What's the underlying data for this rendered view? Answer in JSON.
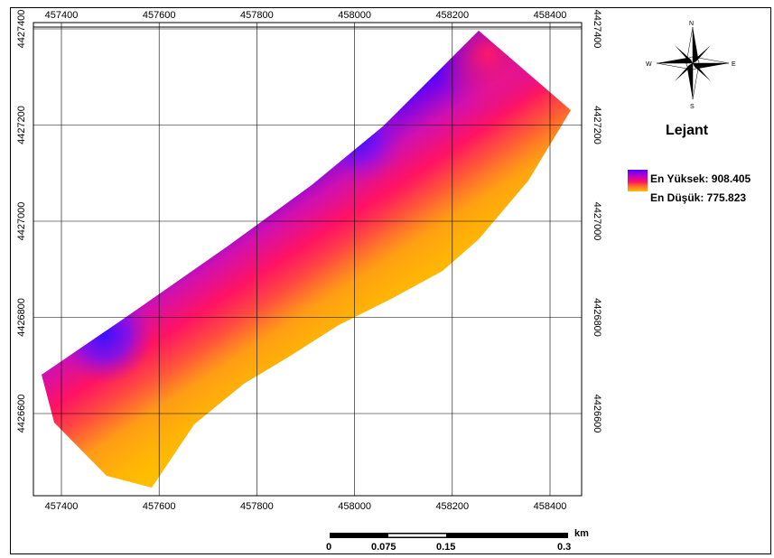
{
  "map": {
    "x_ticks": [
      "457400",
      "457600",
      "457800",
      "458000",
      "458200",
      "458400"
    ],
    "y_ticks": [
      "4427400",
      "4427200",
      "4427000",
      "4426800",
      "4426600"
    ],
    "colors": {
      "high": "#5500ff",
      "mid_high": "#ff1060",
      "mid": "#ff6a30",
      "low": "#ffc000",
      "grid": "#000000"
    }
  },
  "compass": {
    "n": "N",
    "s": "S",
    "e": "E",
    "w": "W"
  },
  "legend": {
    "title": "Lejant",
    "high_label": "En Yüksek: 908.405",
    "low_label": "En Düşük: 775.823"
  },
  "scale_bar": {
    "unit": "km",
    "labels": [
      "0",
      "0.075",
      "0.15",
      "0.3"
    ]
  }
}
